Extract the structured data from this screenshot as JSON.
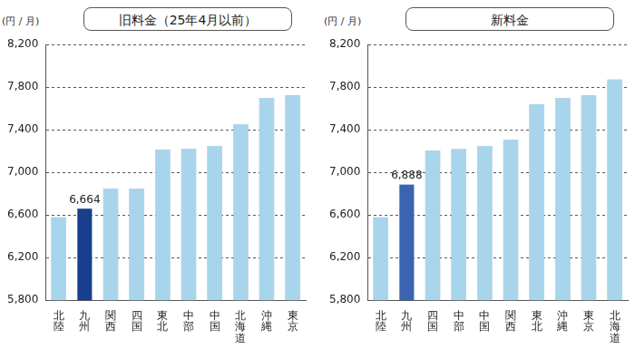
{
  "chart_data": [
    {
      "type": "bar",
      "title": "旧料金（25年4月以前）",
      "y_label": "(円 / 月)",
      "categories": [
        "北陸",
        "九州",
        "関西",
        "四国",
        "東北",
        "中部",
        "中国",
        "北海道",
        "沖縄",
        "東京"
      ],
      "values": [
        6580,
        6664,
        6850,
        6850,
        7215,
        7225,
        7250,
        7455,
        7700,
        7725
      ],
      "value_labels": [
        null,
        "6,664",
        null,
        null,
        null,
        null,
        null,
        null,
        null,
        null
      ],
      "data_labels": true,
      "colors": [
        "#a8d4ec",
        "#183e8c",
        "#a8d4ec",
        "#a8d4ec",
        "#a8d4ec",
        "#a8d4ec",
        "#a8d4ec",
        "#a8d4ec",
        "#a8d4ec",
        "#a8d4ec"
      ],
      "ylim": [
        5800,
        8200
      ],
      "yticks": [
        {
          "value": 5800,
          "label": "5,800"
        },
        {
          "value": 6200,
          "label": "6,200"
        },
        {
          "value": 6600,
          "label": "6,600"
        },
        {
          "value": 7000,
          "label": "7,000"
        },
        {
          "value": 7400,
          "label": "7,400"
        },
        {
          "value": 7800,
          "label": "7,800"
        },
        {
          "value": 8200,
          "label": "8,200"
        }
      ],
      "grid": true
    },
    {
      "type": "bar",
      "title": "新料金",
      "y_label": "(円 / 月)",
      "categories": [
        "北陸",
        "九州",
        "四国",
        "中部",
        "中国",
        "関西",
        "東北",
        "沖縄",
        "東京",
        "北海道"
      ],
      "values": [
        6580,
        6888,
        7205,
        7220,
        7250,
        7310,
        7640,
        7700,
        7725,
        7875
      ],
      "value_labels": [
        null,
        "6,888",
        null,
        null,
        null,
        null,
        null,
        null,
        null,
        null
      ],
      "data_labels": true,
      "colors": [
        "#a8d4ec",
        "#3a63b0",
        "#a8d4ec",
        "#a8d4ec",
        "#a8d4ec",
        "#a8d4ec",
        "#a8d4ec",
        "#a8d4ec",
        "#a8d4ec",
        "#a8d4ec"
      ],
      "ylim": [
        5800,
        8200
      ],
      "yticks": [
        {
          "value": 5800,
          "label": "5,800"
        },
        {
          "value": 6200,
          "label": "6,200"
        },
        {
          "value": 6600,
          "label": "6,600"
        },
        {
          "value": 7000,
          "label": "7,000"
        },
        {
          "value": 7400,
          "label": "7,400"
        },
        {
          "value": 7800,
          "label": "7,800"
        },
        {
          "value": 8200,
          "label": "8,200"
        }
      ],
      "grid": true
    }
  ]
}
